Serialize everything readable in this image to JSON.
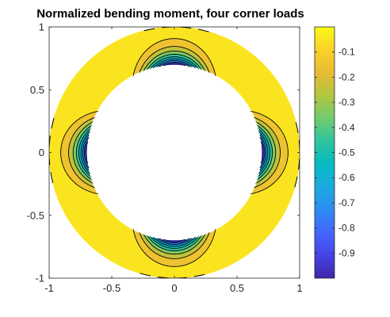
{
  "chart_data": {
    "type": "heatmap",
    "title": "Normalized bending moment, four corner loads",
    "xlabel": "",
    "ylabel": "",
    "xlim": [
      -1,
      1
    ],
    "ylim": [
      -1,
      1
    ],
    "x_ticks": [
      -1,
      -0.5,
      0,
      0.5,
      1
    ],
    "y_ticks": [
      -1,
      -0.5,
      0,
      0.5,
      1
    ],
    "x_tick_labels": [
      "-1",
      "-0.5",
      "0",
      "0.5",
      "1"
    ],
    "y_tick_labels": [
      "-1",
      "-0.5",
      "0",
      "0.5",
      "1"
    ],
    "domain": {
      "shape": "annulus",
      "inner_radius": 0.7,
      "outer_radius": 1.0
    },
    "load_angles_deg": [
      0,
      90,
      180,
      270
    ],
    "contour_levels": [
      -0.9,
      -0.8,
      -0.7,
      -0.6,
      -0.5,
      -0.4,
      -0.3,
      -0.2,
      -0.1
    ],
    "min_value": -1.0,
    "max_value": 0.0,
    "colorbar": {
      "location": "right",
      "range": [
        -1,
        0
      ],
      "ticks": [
        -0.1,
        -0.2,
        -0.3,
        -0.4,
        -0.5,
        -0.6,
        -0.7,
        -0.8,
        -0.9
      ],
      "tick_labels": [
        "-0.1",
        "-0.2",
        "-0.3",
        "-0.4",
        "-0.5",
        "-0.6",
        "-0.7",
        "-0.8",
        "-0.9"
      ],
      "colormap": "parula"
    },
    "grid": false,
    "box": true
  },
  "colors": {
    "background": "#ffffff",
    "axes_line": "#262626",
    "contour_line": "#000000",
    "parula": [
      "#3e26a8",
      "#4743e5",
      "#4367fd",
      "#2d8cf2",
      "#1ca9df",
      "#06bbc2",
      "#2ec49f",
      "#70cc6f",
      "#b2c640",
      "#e7bb33",
      "#fbd12b",
      "#f9fb15"
    ]
  }
}
